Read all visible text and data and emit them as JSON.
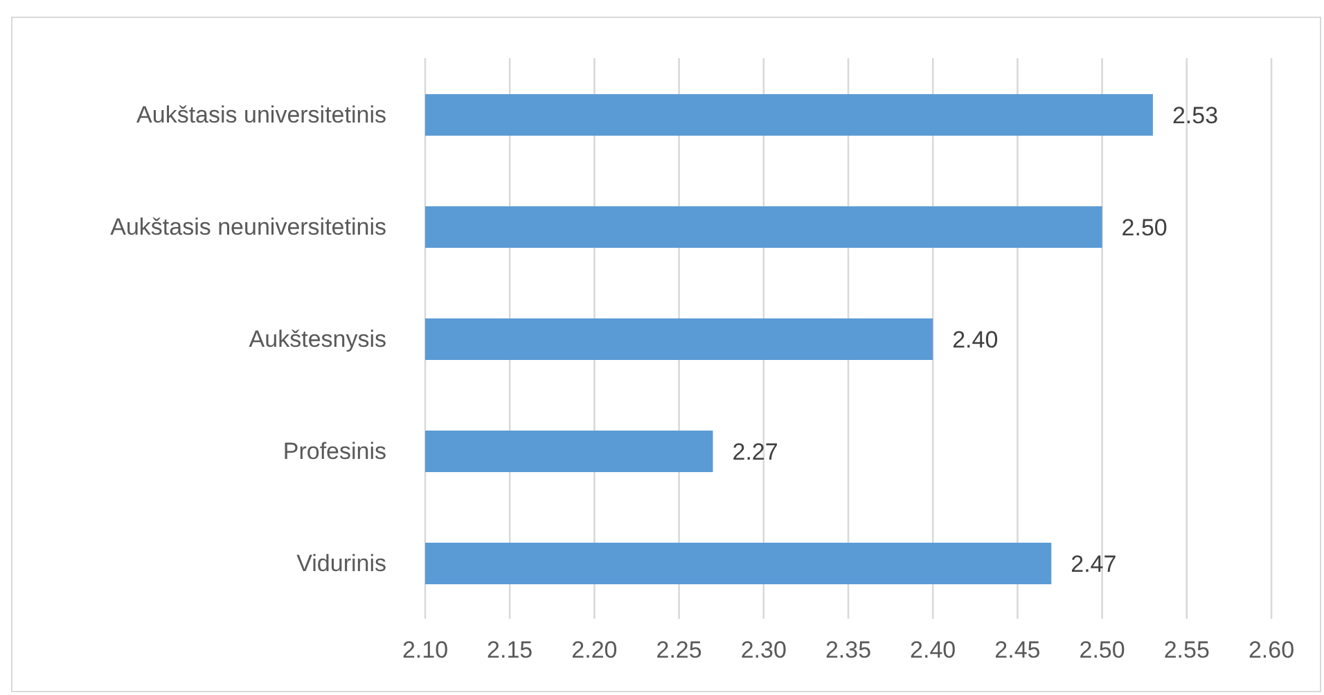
{
  "chart_data": {
    "type": "bar",
    "orientation": "horizontal",
    "categories": [
      "Aukštasis universitetinis",
      "Aukštasis neuniversitetinis",
      "Aukštesnysis",
      "Profesinis",
      "Vidurinis"
    ],
    "values": [
      2.53,
      2.5,
      2.4,
      2.27,
      2.47
    ],
    "color": "#5b9bd5",
    "value_labels": [
      "2.53",
      "2.50",
      "2.40",
      "2.27",
      "2.47"
    ],
    "xlim": [
      2.1,
      2.6
    ],
    "xticks": [
      {
        "value": 2.1,
        "label": "2.10"
      },
      2.15,
      {
        "value": 2.2,
        "label": "2.20"
      },
      2.25,
      {
        "value": 2.3,
        "label": "2.30"
      },
      2.35,
      {
        "value": 2.4,
        "label": "2.40"
      },
      2.45,
      {
        "value": 2.5,
        "label": "2.50"
      },
      2.55,
      {
        "value": 2.6,
        "label": "2.60"
      }
    ],
    "grid": "x"
  }
}
